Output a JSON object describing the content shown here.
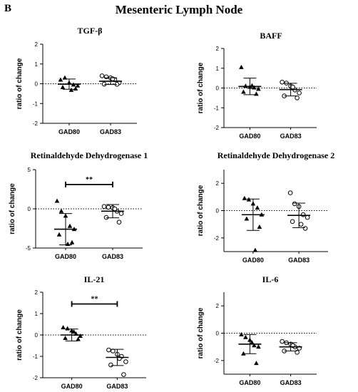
{
  "figure": {
    "panel_letter": "B",
    "title": "Mesenteric Lymph Node"
  },
  "chart_data": [
    {
      "type": "scatter",
      "title": "TGF-β",
      "ylabel": "ratio of change",
      "categories": [
        "GAD80",
        "GAD83"
      ],
      "ylim": [
        -2,
        2
      ],
      "yticks": [
        -2,
        -1,
        0,
        1,
        2
      ],
      "reference_line": 0,
      "significance": null,
      "series": [
        {
          "category": "GAD80",
          "marker": "triangle",
          "mean": -0.02,
          "sd": 0.26,
          "values": [
            0.2,
            0.3,
            0.05,
            -0.05,
            -0.1,
            -0.18,
            -0.25,
            -0.32
          ]
        },
        {
          "category": "GAD83",
          "marker": "circle",
          "mean": 0.13,
          "sd": 0.17,
          "values": [
            0.4,
            0.35,
            0.3,
            0.2,
            0.05,
            -0.02,
            -0.03,
            0.25
          ]
        }
      ]
    },
    {
      "type": "scatter",
      "title": "BAFF",
      "ylabel": "ratio of change",
      "categories": [
        "GAD80",
        "GAD83"
      ],
      "ylim": [
        -2,
        2
      ],
      "yticks": [
        -2,
        -1,
        0,
        1,
        2
      ],
      "reference_line": 0,
      "significance": null,
      "series": [
        {
          "category": "GAD80",
          "marker": "triangle",
          "mean": 0.08,
          "sd": 0.42,
          "values": [
            1.05,
            0.1,
            0.05,
            0.02,
            -0.05,
            -0.2,
            -0.3,
            0.12
          ]
        },
        {
          "category": "GAD83",
          "marker": "circle",
          "mean": -0.08,
          "sd": 0.32,
          "values": [
            0.3,
            0.25,
            0.1,
            -0.1,
            -0.25,
            -0.4,
            -0.5,
            0.05
          ]
        }
      ]
    },
    {
      "type": "scatter",
      "title": "Retinaldehyde Dehydrogenase 1",
      "ylabel": "ratio of change",
      "categories": [
        "GAD80",
        "GAD83"
      ],
      "ylim": [
        -5,
        5
      ],
      "yticks": [
        -5,
        0,
        5
      ],
      "reference_line": 0,
      "significance": {
        "label": "**",
        "from": "GAD80",
        "to": "GAD83",
        "y": 3.1
      },
      "series": [
        {
          "category": "GAD80",
          "marker": "triangle",
          "mean": -2.6,
          "sd": 2.0,
          "values": [
            1.0,
            -0.3,
            -0.9,
            -2.2,
            -2.6,
            -3.3,
            -4.3,
            -4.5
          ]
        },
        {
          "category": "GAD83",
          "marker": "circle",
          "mean": -0.3,
          "sd": 0.85,
          "values": [
            0.3,
            0.2,
            0.15,
            -0.3,
            -0.6,
            -1.1,
            -1.7,
            0.0
          ]
        }
      ]
    },
    {
      "type": "scatter",
      "title": "Retinaldehyde Dehydrogenase 2",
      "ylabel": "ratio of change",
      "categories": [
        "GAD80",
        "GAD83"
      ],
      "ylim": [
        -3,
        3
      ],
      "yticks": [
        -2,
        0,
        2
      ],
      "reference_line": 0,
      "significance": null,
      "series": [
        {
          "category": "GAD80",
          "marker": "triangle",
          "mean": -0.3,
          "sd": 1.15,
          "values": [
            0.9,
            0.8,
            0.5,
            0.2,
            -0.3,
            -0.6,
            -1.2,
            -2.9
          ]
        },
        {
          "category": "GAD83",
          "marker": "circle",
          "mean": -0.35,
          "sd": 0.9,
          "values": [
            1.3,
            0.5,
            0.3,
            -0.3,
            -0.5,
            -0.8,
            -1.3,
            -1.0
          ]
        }
      ]
    },
    {
      "type": "scatter",
      "title": "IL-21",
      "ylabel": "ratio of change",
      "categories": [
        "GAD80",
        "GAD83"
      ],
      "ylim": [
        -2,
        2
      ],
      "yticks": [
        -2,
        -1,
        0,
        1,
        2
      ],
      "reference_line": 0,
      "significance": {
        "label": "**",
        "from": "GAD80",
        "to": "GAD83",
        "y": 1.45
      },
      "series": [
        {
          "category": "GAD80",
          "marker": "triangle",
          "mean": 0.0,
          "sd": 0.28,
          "values": [
            0.35,
            0.3,
            0.2,
            0.05,
            -0.05,
            -0.15,
            -0.2,
            0.15
          ]
        },
        {
          "category": "GAD83",
          "marker": "circle",
          "mean": -1.05,
          "sd": 0.38,
          "values": [
            -0.7,
            -0.75,
            -0.9,
            -1.0,
            -1.25,
            -1.4,
            -1.85,
            -1.1
          ]
        }
      ]
    },
    {
      "type": "scatter",
      "title": "IL-6",
      "ylabel": "ratio of change",
      "categories": [
        "GAD80",
        "GAD83"
      ],
      "ylim": [
        -3,
        3
      ],
      "yticks": [
        -2,
        0,
        2
      ],
      "reference_line": 0,
      "significance": null,
      "series": [
        {
          "category": "GAD80",
          "marker": "triangle",
          "mean": -0.8,
          "sd": 0.7,
          "values": [
            -0.1,
            -0.3,
            -0.5,
            -0.9,
            -1.0,
            -1.5,
            -2.2,
            -0.7
          ]
        },
        {
          "category": "GAD83",
          "marker": "circle",
          "mean": -1.0,
          "sd": 0.3,
          "values": [
            -0.6,
            -0.7,
            -0.8,
            -1.0,
            -1.1,
            -1.3,
            -1.4,
            -0.9
          ]
        }
      ]
    }
  ]
}
